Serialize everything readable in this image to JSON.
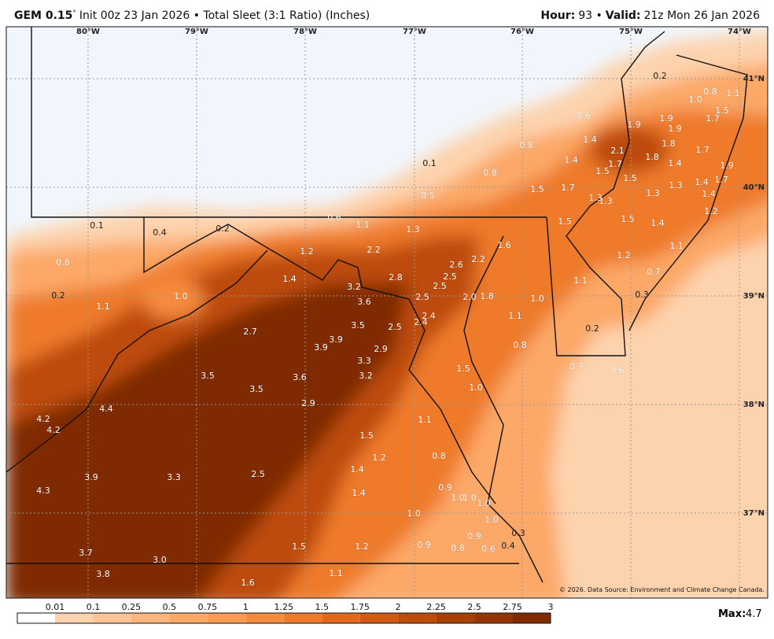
{
  "header": {
    "model": "GEM 0.15",
    "degree": "°",
    "run": "Init 00z 23 Jan 2026 • Total Sleet (3:1 Ratio) (Inches)",
    "hour_label": "Hour:",
    "hour": "93 •",
    "valid_label": "Valid:",
    "valid": "21z Mon 26 Jan 2026"
  },
  "map": {
    "lon_labels": [
      "80°W",
      "79°W",
      "78°W",
      "77°W",
      "76°W",
      "75°W",
      "74°W"
    ],
    "lat_labels": [
      "41°N",
      "40°N",
      "39°N",
      "38°N",
      "37°N"
    ],
    "labels": [
      "0.2",
      "1.0",
      "0.8",
      "1.1",
      "0.6",
      "1.9",
      "1.9",
      "1.9",
      "1.7",
      "1.5",
      "1.8",
      "0.8",
      "1.4",
      "2.1",
      "1.7",
      "1.8",
      "0.1",
      "0.8",
      "1.4",
      "1.5",
      "1.7",
      "1.4",
      "1.9",
      "1.5",
      "1.5",
      "1.7",
      "1.3",
      "1.3",
      "1.4",
      "1.7",
      "1.4",
      "0.5",
      "1.3",
      "1.3",
      "1.2",
      "0.6",
      "1.1",
      "1.3",
      "1.5",
      "1.5",
      "1.4",
      "0.1",
      "0.4",
      "0.2",
      "1.6",
      "1.1",
      "1.2",
      "2.2",
      "2.6",
      "2.2",
      "1.2",
      "0.8",
      "1.4",
      "2.8",
      "2.5",
      "0.7",
      "2.5",
      "1.1",
      "0.2",
      "1.0",
      "3.2",
      "2.5",
      "2.0",
      "1.8",
      "1.0",
      "0.3",
      "1.1",
      "3.6",
      "2.4",
      "1.1",
      "3.5",
      "2.5",
      "2.4",
      "0.2",
      "2.7",
      "3.9",
      "3.9",
      "2.9",
      "0.8",
      "3.3",
      "0.7",
      "0.6",
      "1.5",
      "3.5",
      "3.2",
      "3.6",
      "1.0",
      "3.5",
      "2.9",
      "4.4",
      "4.2",
      "4.2",
      "1.1",
      "1.5",
      "1.2",
      "0.8",
      "1.4",
      "3.9",
      "3.3",
      "2.5",
      "0.9",
      "4.3",
      "1.4",
      "1.0",
      "1.0",
      "1.0",
      "1.0",
      "1.0",
      "0.3",
      "0.9",
      "3.7",
      "1.5",
      "1.2",
      "0.9",
      "0.8",
      "0.6",
      "0.4",
      "3.0",
      "3.8",
      "1.1",
      "1.6"
    ],
    "copyright": "© 2026. Data Source: Environment and Climate Change Canada."
  },
  "legend": {
    "ticks": [
      "0.01",
      "0.1",
      "0.25",
      "0.5",
      "0.75",
      "1",
      "1.25",
      "1.5",
      "1.75",
      "2",
      "2.25",
      "2.5",
      "2.75",
      "3"
    ],
    "colors": [
      "#ffffff",
      "#fdd3ad",
      "#fdc496",
      "#fdb57e",
      "#fca868",
      "#fb9a52",
      "#f68b3c",
      "#ee7a2a",
      "#e2691c",
      "#d15a12",
      "#bd4c0b",
      "#a84006",
      "#933504",
      "#7f2a03"
    ],
    "max_label": "Max:",
    "max": "4.7"
  }
}
